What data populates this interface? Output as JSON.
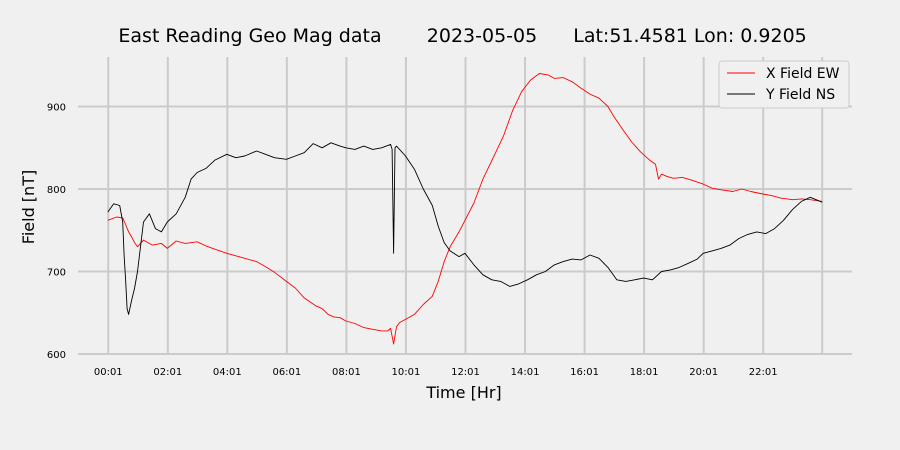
{
  "chart_data": {
    "type": "line",
    "title_parts": [
      "East Reading Geo Mag data",
      "2023-05-05",
      "Lat:51.4581  Lon: 0.9205"
    ],
    "xlabel": "Time  [Hr]",
    "ylabel": "Field  [nT]",
    "x_unit": "hours since 00:00",
    "xlim": [
      -1.0,
      25.0
    ],
    "ylim": [
      600,
      960
    ],
    "x_ticks": [
      {
        "value": 0.0167,
        "label": "00:01"
      },
      {
        "value": 2.0167,
        "label": "02:01"
      },
      {
        "value": 4.0167,
        "label": "04:01"
      },
      {
        "value": 6.0167,
        "label": "06:01"
      },
      {
        "value": 8.0167,
        "label": "08:01"
      },
      {
        "value": 10.0167,
        "label": "10:01"
      },
      {
        "value": 12.0167,
        "label": "12:01"
      },
      {
        "value": 14.0167,
        "label": "14:01"
      },
      {
        "value": 16.0167,
        "label": "16:01"
      },
      {
        "value": 18.0167,
        "label": "18:01"
      },
      {
        "value": 20.0167,
        "label": "20:01"
      },
      {
        "value": 22.0167,
        "label": "22:01"
      },
      {
        "value": 24.0,
        "label": ""
      }
    ],
    "y_ticks": [
      {
        "value": 600,
        "label": "600"
      },
      {
        "value": 700,
        "label": "700"
      },
      {
        "value": 800,
        "label": "800"
      },
      {
        "value": 900,
        "label": "900"
      }
    ],
    "grid": true,
    "legend_position": "top-right",
    "series": [
      {
        "name": "X Field EW",
        "color": "#ff0000",
        "x": [
          0.0,
          0.3,
          0.5,
          0.6,
          0.7,
          0.8,
          0.9,
          1.0,
          1.2,
          1.5,
          1.8,
          2.0,
          2.3,
          2.6,
          3.0,
          3.3,
          3.6,
          4.0,
          4.3,
          4.6,
          5.0,
          5.3,
          5.6,
          6.0,
          6.3,
          6.6,
          7.0,
          7.2,
          7.4,
          7.6,
          7.8,
          8.0,
          8.3,
          8.6,
          8.9,
          9.2,
          9.4,
          9.5,
          9.6,
          9.7,
          9.8,
          10.0,
          10.3,
          10.6,
          10.9,
          11.1,
          11.3,
          11.5,
          11.8,
          12.0,
          12.3,
          12.6,
          13.0,
          13.3,
          13.6,
          13.9,
          14.2,
          14.5,
          14.8,
          15.0,
          15.3,
          15.6,
          15.9,
          16.2,
          16.5,
          16.8,
          17.0,
          17.3,
          17.6,
          17.9,
          18.2,
          18.4,
          18.5,
          18.6,
          18.8,
          19.0,
          19.3,
          19.6,
          20.0,
          20.3,
          20.6,
          21.0,
          21.3,
          21.6,
          22.0,
          22.3,
          22.6,
          23.0,
          23.3,
          23.6,
          24.0
        ],
        "y": [
          762,
          766,
          765,
          757,
          748,
          742,
          735,
          730,
          738,
          732,
          734,
          728,
          737,
          734,
          736,
          731,
          727,
          722,
          719,
          716,
          712,
          706,
          699,
          688,
          680,
          668,
          658,
          655,
          648,
          645,
          644,
          640,
          637,
          632,
          630,
          628,
          628,
          631,
          612,
          633,
          638,
          642,
          648,
          660,
          670,
          688,
          712,
          730,
          748,
          762,
          783,
          812,
          842,
          865,
          895,
          918,
          932,
          940,
          938,
          934,
          935,
          930,
          922,
          915,
          910,
          900,
          888,
          872,
          857,
          845,
          835,
          830,
          812,
          818,
          815,
          813,
          814,
          811,
          806,
          801,
          799,
          797,
          800,
          797,
          794,
          792,
          789,
          787,
          788,
          787,
          785
        ]
      },
      {
        "name": "Y Field NS",
        "color": "#000000",
        "x": [
          0.0,
          0.2,
          0.4,
          0.5,
          0.55,
          0.6,
          0.65,
          0.7,
          0.8,
          0.9,
          1.0,
          1.2,
          1.4,
          1.6,
          1.8,
          2.0,
          2.3,
          2.6,
          2.8,
          3.0,
          3.3,
          3.6,
          4.0,
          4.3,
          4.6,
          5.0,
          5.3,
          5.6,
          6.0,
          6.3,
          6.6,
          6.9,
          7.2,
          7.5,
          7.8,
          8.0,
          8.3,
          8.6,
          8.9,
          9.2,
          9.5,
          9.55,
          9.6,
          9.65,
          9.7,
          10.0,
          10.3,
          10.6,
          10.9,
          11.1,
          11.3,
          11.5,
          11.8,
          12.0,
          12.3,
          12.6,
          12.9,
          13.2,
          13.5,
          13.8,
          14.1,
          14.4,
          14.7,
          15.0,
          15.3,
          15.6,
          15.9,
          16.2,
          16.5,
          16.8,
          17.1,
          17.4,
          17.7,
          18.0,
          18.3,
          18.6,
          18.9,
          19.2,
          19.5,
          19.8,
          20.0,
          20.3,
          20.6,
          20.9,
          21.2,
          21.5,
          21.8,
          22.1,
          22.4,
          22.7,
          23.0,
          23.3,
          23.6,
          24.0
        ],
        "y": [
          772,
          782,
          780,
          760,
          720,
          690,
          655,
          648,
          665,
          680,
          700,
          760,
          770,
          752,
          748,
          760,
          770,
          790,
          812,
          820,
          825,
          835,
          842,
          838,
          840,
          846,
          842,
          838,
          836,
          840,
          844,
          855,
          850,
          856,
          852,
          850,
          848,
          852,
          848,
          850,
          854,
          848,
          722,
          850,
          852,
          840,
          824,
          800,
          780,
          755,
          735,
          725,
          718,
          722,
          708,
          696,
          690,
          688,
          682,
          685,
          690,
          696,
          700,
          708,
          712,
          715,
          714,
          720,
          716,
          705,
          690,
          688,
          690,
          692,
          690,
          700,
          702,
          705,
          710,
          715,
          722,
          725,
          728,
          732,
          740,
          745,
          748,
          746,
          752,
          762,
          775,
          785,
          790,
          784
        ]
      }
    ]
  }
}
